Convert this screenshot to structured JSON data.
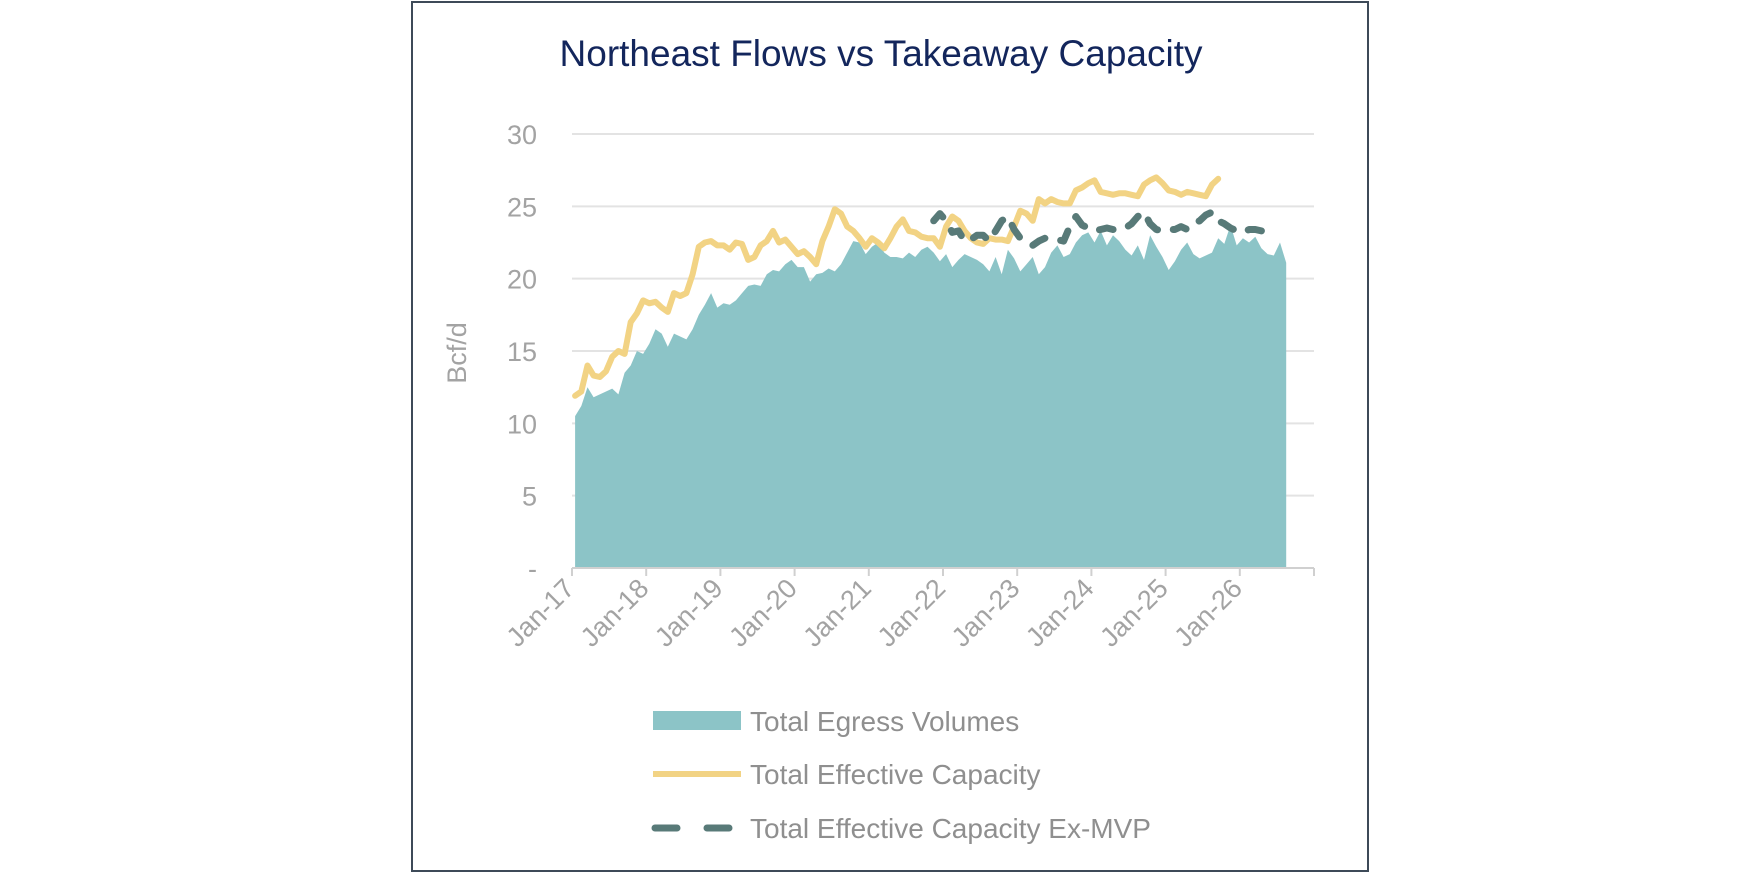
{
  "chart_data": {
    "type": "area",
    "title": "Northeast Flows vs Takeaway Capacity",
    "ylabel": "Bcf/d",
    "xlabel": "",
    "ylim": [
      0,
      30
    ],
    "y_ticks": [
      0,
      5,
      10,
      15,
      20,
      25,
      30
    ],
    "y_tick_labels": [
      "-",
      "5",
      "10",
      "15",
      "20",
      "25",
      "30"
    ],
    "x_tick_labels": [
      "Jan-17",
      "Jan-18",
      "Jan-19",
      "Jan-20",
      "Jan-21",
      "Jan-22",
      "Jan-23",
      "Jan-24",
      "Jan-25",
      "Jan-26"
    ],
    "x_start": "2017-01",
    "x_end": "2026-12",
    "grid": true,
    "legend_position": "bottom",
    "series": [
      {
        "name": "Total Egress Volumes",
        "style": "area",
        "color": "#8cc4c7",
        "start": "2017-01",
        "values": [
          10.5,
          11.2,
          12.5,
          11.8,
          12.0,
          12.2,
          12.4,
          12.0,
          13.5,
          14.0,
          15.0,
          14.8,
          15.5,
          16.5,
          16.2,
          15.3,
          16.2,
          16.0,
          15.8,
          16.5,
          17.5,
          18.2,
          19.0,
          18.0,
          18.3,
          18.2,
          18.5,
          19.0,
          19.5,
          19.6,
          19.5,
          20.3,
          20.6,
          20.5,
          21.0,
          21.3,
          20.8,
          20.8,
          19.8,
          20.3,
          20.4,
          20.7,
          20.5,
          21.0,
          21.8,
          22.6,
          22.5,
          21.7,
          22.2,
          22.5,
          21.8,
          21.5,
          21.5,
          21.4,
          21.8,
          21.5,
          22.0,
          22.2,
          21.8,
          21.2,
          21.7,
          20.8,
          21.3,
          21.7,
          21.5,
          21.3,
          21.0,
          20.5,
          21.5,
          20.3,
          22.0,
          21.4,
          20.5,
          21.0,
          21.5,
          20.3,
          20.8,
          21.8,
          22.3,
          21.5,
          21.7,
          22.5,
          23.0,
          23.2,
          22.5,
          23.3,
          22.3,
          23.0,
          22.6,
          22.0,
          21.6,
          22.3,
          21.3,
          23.0,
          22.2,
          21.5,
          20.6,
          21.2,
          22.0,
          22.5,
          21.7,
          21.4,
          21.6,
          21.8,
          22.8,
          22.4,
          23.7,
          22.3,
          22.8,
          22.5,
          22.9,
          22.1,
          21.7,
          21.6,
          22.5,
          21.1
        ]
      },
      {
        "name": "Total Effective Capacity",
        "style": "line",
        "color": "#f2d384",
        "start": "2017-01",
        "values": [
          11.9,
          12.2,
          14.0,
          13.3,
          13.2,
          13.6,
          14.6,
          15.0,
          14.8,
          17.0,
          17.6,
          18.5,
          18.3,
          18.4,
          18.0,
          17.7,
          19.0,
          18.8,
          19.0,
          20.3,
          22.2,
          22.5,
          22.6,
          22.3,
          22.3,
          22.0,
          22.5,
          22.4,
          21.3,
          21.5,
          22.3,
          22.6,
          23.3,
          22.5,
          22.7,
          22.2,
          21.7,
          21.9,
          21.5,
          21.0,
          22.6,
          23.6,
          24.8,
          24.5,
          23.6,
          23.3,
          22.8,
          22.2,
          22.8,
          22.5,
          22.1,
          22.8,
          23.6,
          24.1,
          23.3,
          23.2,
          22.9,
          22.8,
          22.8,
          22.2,
          23.6,
          24.3,
          24.0,
          23.3,
          22.8,
          22.5,
          22.4,
          22.8,
          22.7,
          22.7,
          22.6,
          23.6,
          24.7,
          24.5,
          24.0,
          25.5,
          25.2,
          25.5,
          25.3,
          25.2,
          25.2,
          26.1,
          26.3,
          26.6,
          26.8,
          26.0,
          25.9,
          25.8,
          25.9,
          25.9,
          25.8,
          25.7,
          26.5,
          26.8,
          27.0,
          26.6,
          26.1,
          26.0,
          25.8,
          26.0,
          25.9,
          25.8,
          25.7,
          26.5,
          26.9
        ]
      },
      {
        "name": "Total Effective Capacity Ex-MVP",
        "style": "dashed",
        "color": "#587a78",
        "start": "2021-11",
        "values": [
          24.0,
          24.5,
          24.0,
          23.2,
          23.3,
          22.6,
          22.7,
          23.0,
          23.0,
          22.6,
          23.3,
          24.0,
          24.3,
          23.4,
          22.8,
          22.5,
          22.3,
          22.6,
          22.8,
          22.7,
          22.7,
          22.6,
          23.6,
          24.3,
          23.7,
          23.5,
          23.3,
          23.4,
          23.5,
          23.4,
          23.4,
          23.5,
          23.8,
          24.3,
          24.6,
          23.8,
          23.4,
          23.3,
          23.4,
          23.4,
          23.6,
          23.4,
          23.8,
          24.0,
          24.4,
          24.6,
          24.0,
          23.8,
          23.5,
          23.3,
          23.2,
          23.4,
          23.4,
          23.3
        ]
      }
    ]
  }
}
